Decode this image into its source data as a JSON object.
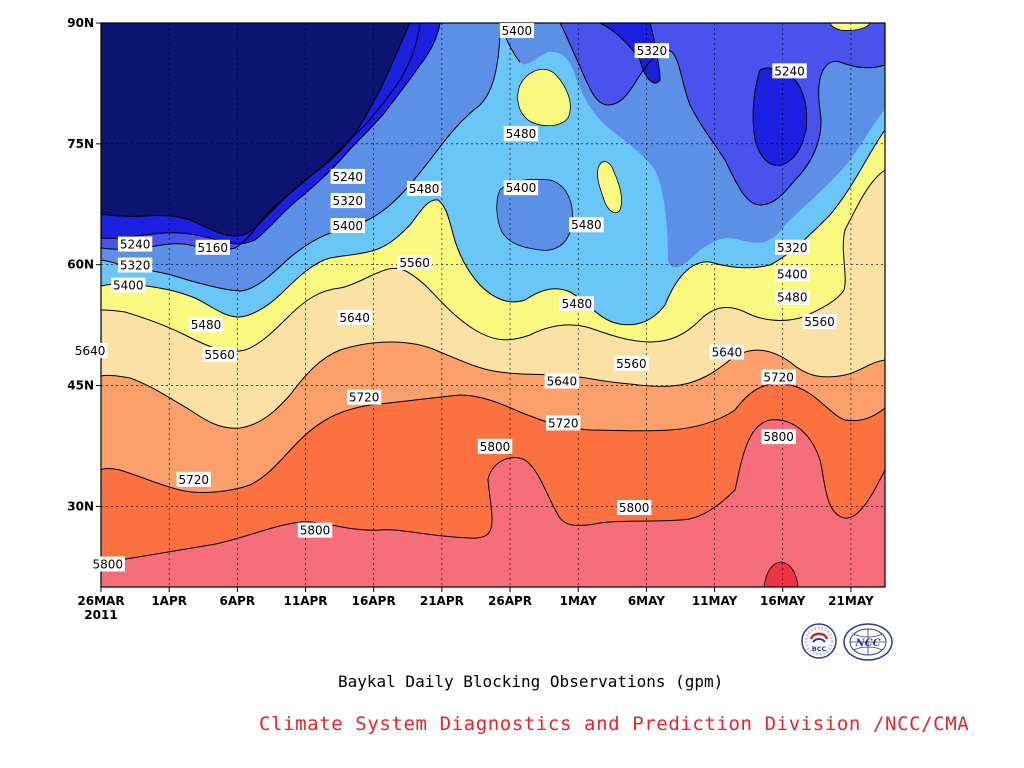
{
  "chart_data": {
    "type": "contour",
    "caption": "Baykal Daily Blocking Observations (gpm)",
    "y_ticks": [
      "90N",
      "75N",
      "60N",
      "45N",
      "30N"
    ],
    "x_ticks": [
      "26MAR",
      "1APR",
      "6APR",
      "11APR",
      "16APR",
      "21APR",
      "26APR",
      "1MAY",
      "6MAY",
      "11MAY",
      "16MAY",
      "21MAY"
    ],
    "x_year": "2011",
    "ylim": [
      20,
      90
    ],
    "levels": [
      5160,
      5240,
      5320,
      5400,
      5480,
      5560,
      5640,
      5720,
      5800,
      5880
    ],
    "level_colors": [
      "#0b1470",
      "#1a1fe0",
      "#4a52ee",
      "#5b90e6",
      "#6ac6f8",
      "#fafa80",
      "#fce1a4",
      "#fba06a",
      "#fb7240",
      "#f56e7a",
      "#ee3444"
    ],
    "contour_labels": [
      {
        "text": "5400",
        "x": 30.5,
        "y": 89
      },
      {
        "text": "5320",
        "x": 40.4,
        "y": 86.5
      },
      {
        "text": "5240",
        "x": 50.5,
        "y": 84
      },
      {
        "text": "5480",
        "x": 30.8,
        "y": 76.2
      },
      {
        "text": "5400",
        "x": 30.8,
        "y": 69.5
      },
      {
        "text": "5480",
        "x": 35.6,
        "y": 64.9
      },
      {
        "text": "5240",
        "x": 18.1,
        "y": 70.9
      },
      {
        "text": "5320",
        "x": 18.1,
        "y": 67.9
      },
      {
        "text": "5400",
        "x": 18.1,
        "y": 64.8
      },
      {
        "text": "5480",
        "x": 23.7,
        "y": 69.4
      },
      {
        "text": "5560",
        "x": 23.0,
        "y": 60.2
      },
      {
        "text": "5640",
        "x": 18.6,
        "y": 53.4
      },
      {
        "text": "5720",
        "x": 19.3,
        "y": 43.5
      },
      {
        "text": "5800",
        "x": 28.9,
        "y": 37.4
      },
      {
        "text": "5720",
        "x": 33.9,
        "y": 40.3
      },
      {
        "text": "5640",
        "x": 33.8,
        "y": 45.5
      },
      {
        "text": "5480",
        "x": 34.9,
        "y": 55.1
      },
      {
        "text": "5560",
        "x": 38.9,
        "y": 47.7
      },
      {
        "text": "5800",
        "x": 39.1,
        "y": 29.8
      },
      {
        "text": "5320",
        "x": 50.7,
        "y": 62.1
      },
      {
        "text": "5400",
        "x": 50.7,
        "y": 58.8
      },
      {
        "text": "5480",
        "x": 50.7,
        "y": 55.9
      },
      {
        "text": "5560",
        "x": 52.7,
        "y": 52.9
      },
      {
        "text": "5640",
        "x": 45.9,
        "y": 49.1
      },
      {
        "text": "5720",
        "x": 49.7,
        "y": 46.0
      },
      {
        "text": "5800",
        "x": 49.7,
        "y": 38.6
      },
      {
        "text": "5800",
        "x": 15.7,
        "y": 27.0
      },
      {
        "text": "5240",
        "x": 2.5,
        "y": 62.5
      },
      {
        "text": "5320",
        "x": 2.5,
        "y": 59.9
      },
      {
        "text": "5400",
        "x": 2.0,
        "y": 57.4
      },
      {
        "text": "5160",
        "x": 8.2,
        "y": 62.1
      },
      {
        "text": "5480",
        "x": 7.7,
        "y": 52.5
      },
      {
        "text": "5560",
        "x": 8.7,
        "y": 48.8
      },
      {
        "text": "5640",
        "x": -0.8,
        "y": 49.3
      },
      {
        "text": "5720",
        "x": 6.8,
        "y": 33.3
      },
      {
        "text": "5800",
        "x": 0.5,
        "y": 22.8
      }
    ]
  },
  "credit": {
    "text": "Climate System Diagnostics and Prediction Division /NCC/CMA",
    "color": "#e8232a"
  },
  "logos": {
    "left": "BCC",
    "right": "NCC"
  }
}
